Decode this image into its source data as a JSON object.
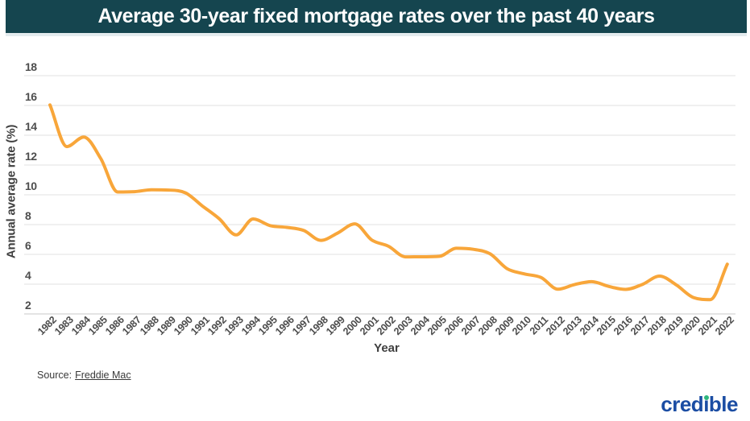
{
  "header": {
    "title": "Average 30-year fixed mortgage rates over the past 40 years",
    "bg_color": "#15454f",
    "text_color": "#ffffff"
  },
  "chart_data": {
    "type": "line",
    "title": "Average 30-year fixed mortgage rates over the past 40 years",
    "xlabel": "Year",
    "ylabel": "Annual average rate (%)",
    "x": [
      1982,
      1983,
      1984,
      1985,
      1986,
      1987,
      1988,
      1989,
      1990,
      1991,
      1992,
      1993,
      1994,
      1995,
      1996,
      1997,
      1998,
      1999,
      2000,
      2001,
      2002,
      2003,
      2004,
      2005,
      2006,
      2007,
      2008,
      2009,
      2010,
      2011,
      2012,
      2013,
      2014,
      2015,
      2016,
      2017,
      2018,
      2019,
      2020,
      2021,
      2022
    ],
    "values": [
      16.04,
      13.24,
      13.88,
      12.43,
      10.19,
      10.21,
      10.34,
      10.32,
      10.13,
      9.25,
      8.39,
      7.31,
      8.38,
      7.93,
      7.81,
      7.6,
      6.94,
      7.44,
      8.05,
      6.97,
      6.54,
      5.83,
      5.84,
      5.87,
      6.41,
      6.34,
      6.03,
      5.04,
      4.69,
      4.45,
      3.66,
      3.98,
      4.17,
      3.85,
      3.65,
      3.99,
      4.54,
      3.94,
      3.1,
      2.96,
      5.34
    ],
    "ylim": [
      2,
      18
    ],
    "yticks": [
      2,
      4,
      6,
      8,
      10,
      12,
      14,
      16,
      18
    ],
    "grid": true,
    "legend": false,
    "line_color": "#f8a63a",
    "grid_color": "#e0e0e0",
    "axis_line_color": "#c9c9c9",
    "tick_label_color": "#4d4d4d"
  },
  "footer": {
    "source_prefix": "Source:",
    "source_link": "Freddie Mac",
    "logo": {
      "pre": "cred",
      "i": "i",
      "post": "ble",
      "color": "#1b4da3",
      "dot_color": "#2eb67d"
    }
  }
}
